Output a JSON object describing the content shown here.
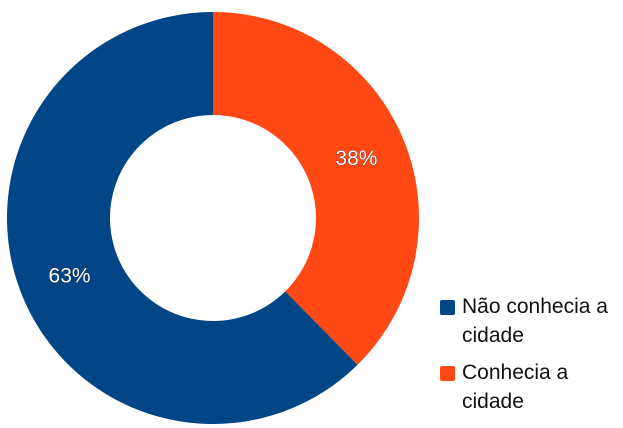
{
  "chart_data": {
    "type": "pie",
    "variant": "donut",
    "title": "",
    "slices": [
      {
        "label": "Conhecia a cidade",
        "value": 38,
        "value_label": "38%",
        "color": "#ff4814"
      },
      {
        "label": "Não conhecia a cidade",
        "value": 63,
        "value_label": "63%",
        "color": "#004586"
      }
    ],
    "legend_position": "bottom-right",
    "start_angle_deg": 0,
    "direction": "clockwise"
  }
}
